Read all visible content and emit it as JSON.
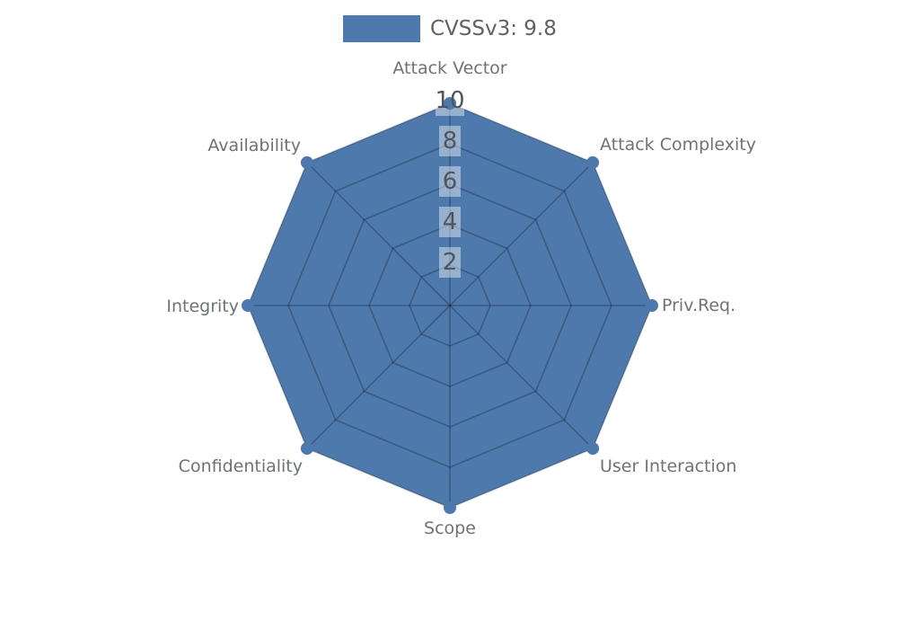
{
  "legend": {
    "label": "CVSSv3: 9.8",
    "swatch_color": "#4d79ac"
  },
  "chart_data": {
    "type": "radar",
    "title": "CVSSv3: 9.8",
    "categories": [
      "Attack Vector",
      "Attack Complexity",
      "Priv.Req.",
      "User Interaction",
      "Scope",
      "Confidentiality",
      "Integrity",
      "Availability"
    ],
    "series": [
      {
        "name": "CVSSv3: 9.8",
        "values": [
          10,
          10,
          10,
          10,
          10,
          10,
          10,
          10
        ]
      }
    ],
    "radial_axis": {
      "min": 0,
      "max": 10,
      "ticks": [
        2,
        4,
        6,
        8,
        10
      ]
    },
    "grid": true,
    "legend_position": "top-center",
    "colors": {
      "series_fill": "#4d79ac",
      "grid_line": "rgba(0,0,0,0.25)",
      "axis_label": "#6f7276",
      "tick_label": "#50555d",
      "tick_label_box": "rgba(255,255,255,0.42)",
      "legend_text": "#5f6165"
    }
  }
}
